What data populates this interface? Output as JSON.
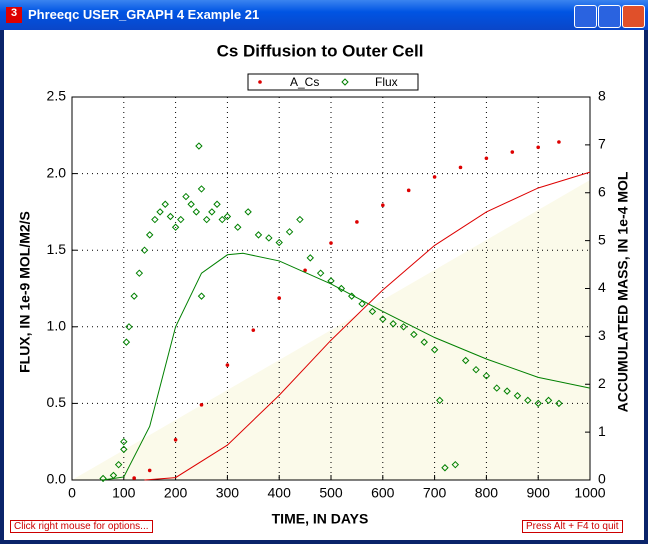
{
  "window": {
    "title": "Phreeqc USER_GRAPH 4 Example 21",
    "hint_left": "Click right mouse for options...",
    "hint_right": "Press Alt + F4 to quit"
  },
  "chart_data": {
    "type": "scatter",
    "title": "Cs Diffusion to Outer Cell",
    "x_label": "TIME, IN DAYS",
    "y_label": "FLUX, IN 1e-9 MOL/M2/S",
    "y2_label": "ACCUMULATED MASS, IN 1e-4 MOL",
    "xlim": [
      0,
      1000
    ],
    "xticks": [
      0,
      100,
      200,
      300,
      400,
      500,
      600,
      700,
      800,
      900,
      1000
    ],
    "ylim": [
      0,
      2.5
    ],
    "yticks": [
      {
        "value": 0,
        "label": "0.0"
      },
      0.5,
      {
        "value": 1,
        "label": "1.0"
      },
      1.5,
      {
        "value": 2,
        "label": "2.0"
      },
      2.5
    ],
    "y2lim": [
      0,
      8
    ],
    "y2ticks": [
      0,
      1,
      2,
      3,
      4,
      5,
      6,
      7,
      8
    ],
    "grid": true,
    "legend": "top",
    "series": [
      {
        "name": "A_Cs",
        "color": "#dd0000",
        "axis": "y2",
        "marker": "dot",
        "x": [
          120,
          150,
          200,
          250,
          300,
          350,
          400,
          450,
          500,
          550,
          600,
          650,
          700,
          750,
          800,
          850,
          900,
          940
        ],
        "values": [
          0.04,
          0.2,
          0.84,
          1.57,
          2.4,
          3.13,
          3.8,
          4.38,
          4.95,
          5.39,
          5.74,
          6.05,
          6.33,
          6.53,
          6.72,
          6.85,
          6.95,
          7.06
        ]
      },
      {
        "name": "Flux",
        "color": "#008000",
        "axis": "y",
        "marker": "diamond",
        "x": [
          60,
          80,
          90,
          100,
          100,
          105,
          110,
          120,
          130,
          140,
          150,
          160,
          170,
          180,
          190,
          200,
          210,
          220,
          230,
          240,
          245,
          250,
          250,
          260,
          270,
          280,
          290,
          300,
          320,
          340,
          360,
          380,
          400,
          420,
          440,
          460,
          480,
          500,
          520,
          540,
          560,
          580,
          600,
          620,
          640,
          660,
          680,
          700,
          710,
          720,
          740,
          760,
          780,
          800,
          820,
          840,
          860,
          880,
          900,
          920,
          940
        ],
        "values": [
          0.01,
          0.03,
          0.1,
          0.25,
          0.2,
          0.9,
          1.0,
          1.2,
          1.35,
          1.5,
          1.6,
          1.7,
          1.75,
          1.8,
          1.72,
          1.65,
          1.7,
          1.85,
          1.8,
          1.75,
          2.18,
          1.9,
          1.2,
          1.7,
          1.75,
          1.8,
          1.7,
          1.72,
          1.65,
          1.75,
          1.6,
          1.58,
          1.55,
          1.62,
          1.7,
          1.45,
          1.35,
          1.3,
          1.25,
          1.2,
          1.15,
          1.1,
          1.05,
          1.02,
          1.0,
          0.95,
          0.9,
          0.85,
          0.52,
          0.08,
          0.1,
          0.78,
          0.72,
          0.68,
          0.6,
          0.58,
          0.55,
          0.52,
          0.5,
          0.52,
          0.5
        ]
      },
      {
        "color": "#008000",
        "axis": "y",
        "marker": "line",
        "x": [
          60,
          100,
          150,
          200,
          250,
          300,
          330,
          400,
          500,
          600,
          700,
          800,
          900,
          1000
        ],
        "values": [
          0,
          0.02,
          0.35,
          1.0,
          1.35,
          1.47,
          1.48,
          1.43,
          1.28,
          1.1,
          0.93,
          0.79,
          0.67,
          0.6
        ]
      },
      {
        "color": "#dd0000",
        "axis": "y2",
        "marker": "line",
        "x": [
          140,
          200,
          300,
          400,
          500,
          600,
          700,
          800,
          900,
          1000
        ],
        "values": [
          0,
          0.05,
          0.73,
          1.77,
          2.92,
          3.97,
          4.9,
          5.6,
          6.1,
          6.43
        ]
      }
    ]
  }
}
